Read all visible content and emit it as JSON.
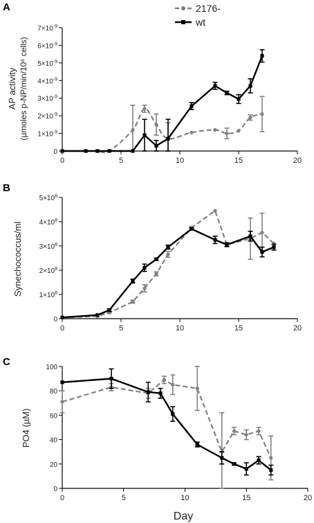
{
  "legend": {
    "entries": [
      {
        "label": "2176-",
        "color": "#808080",
        "dash": true
      },
      {
        "label": "wt",
        "color": "#000000",
        "dash": false
      }
    ]
  },
  "xlabel": "Day",
  "chart_data": [
    {
      "panel": "A",
      "type": "line",
      "xlabel": "",
      "ylabel_line1": "AP activity",
      "ylabel_line2": "(µmoles p-NP/min/10⁶ cells)",
      "xlim": [
        0,
        20
      ],
      "xticks": [
        "0",
        "5",
        "10",
        "15",
        "20"
      ],
      "ylim": [
        0,
        7e-09
      ],
      "yticks": [
        {
          "v": 0,
          "base": "0",
          "exp": ""
        },
        {
          "v": 1e-09,
          "base": "1×10",
          "exp": "-9"
        },
        {
          "v": 2e-09,
          "base": "2×10",
          "exp": "-9"
        },
        {
          "v": 3e-09,
          "base": "3×10",
          "exp": "-9"
        },
        {
          "v": 4e-09,
          "base": "4×10",
          "exp": "-9"
        },
        {
          "v": 5e-09,
          "base": "5×10",
          "exp": "-9"
        },
        {
          "v": 6e-09,
          "base": "6×10",
          "exp": "-9"
        },
        {
          "v": 7e-09,
          "base": "7×10",
          "exp": "-9"
        }
      ],
      "series": [
        {
          "name": "2176-",
          "color": "#808080",
          "dash": true,
          "smooth": true,
          "points": [
            [
              0,
              0,
              0
            ],
            [
              2,
              0,
              0
            ],
            [
              3,
              0,
              0
            ],
            [
              4,
              0,
              0
            ],
            [
              6,
              1.2e-09,
              1.4e-09
            ],
            [
              7,
              2.4e-09,
              2e-10
            ],
            [
              8,
              1.5e-09,
              6e-10
            ],
            [
              9,
              7e-10,
              9e-10
            ],
            [
              11,
              1.05e-09,
              0
            ],
            [
              13,
              1.2e-09,
              0
            ],
            [
              14,
              1e-09,
              3e-10
            ],
            [
              15,
              1.15e-09,
              0
            ],
            [
              16,
              1.9e-09,
              1.5e-10
            ],
            [
              17,
              2.1e-09,
              1e-09
            ]
          ]
        },
        {
          "name": "wt",
          "color": "#000000",
          "dash": false,
          "smooth": false,
          "points": [
            [
              0,
              0,
              0
            ],
            [
              2,
              0,
              0
            ],
            [
              3,
              0,
              0
            ],
            [
              4,
              0,
              0
            ],
            [
              6,
              0,
              0
            ],
            [
              7,
              9e-10,
              9e-10
            ],
            [
              8,
              3e-10,
              3e-10
            ],
            [
              9,
              7e-10,
              1.1e-09
            ],
            [
              11,
              2.55e-09,
              2e-10
            ],
            [
              13,
              3.7e-09,
              2e-10
            ],
            [
              14,
              3.3e-09,
              1e-10
            ],
            [
              15,
              2.95e-09,
              2.5e-10
            ],
            [
              16,
              3.7e-09,
              4e-10
            ],
            [
              17,
              5.4e-09,
              3.5e-10
            ]
          ]
        }
      ]
    },
    {
      "panel": "B",
      "type": "line",
      "xlabel": "",
      "ylabel_line1": "Synechococcus/ml",
      "ylabel_line2": "",
      "xlim": [
        0,
        20
      ],
      "xticks": [
        "0",
        "5",
        "10",
        "15",
        "20"
      ],
      "ylim": [
        0,
        500000000
      ],
      "yticks": [
        {
          "v": 0,
          "base": "0",
          "exp": ""
        },
        {
          "v": 100000000,
          "base": "1×10",
          "exp": "8"
        },
        {
          "v": 200000000,
          "base": "2×10",
          "exp": "8"
        },
        {
          "v": 300000000,
          "base": "3×10",
          "exp": "8"
        },
        {
          "v": 400000000,
          "base": "4×10",
          "exp": "8"
        },
        {
          "v": 500000000,
          "base": "5×10",
          "exp": "8"
        }
      ],
      "series": [
        {
          "name": "2176-",
          "color": "#808080",
          "dash": true,
          "smooth": false,
          "points": [
            [
              0,
              5000000,
              0
            ],
            [
              3,
              10000000,
              0
            ],
            [
              4,
              25000000,
              3000000
            ],
            [
              6,
              70000000,
              6000000
            ],
            [
              7,
              125000000,
              15000000
            ],
            [
              8,
              185000000,
              8000000
            ],
            [
              9,
              265000000,
              12000000
            ],
            [
              11,
              375000000,
              5000000
            ],
            [
              13,
              445000000,
              0
            ],
            [
              14,
              305000000,
              0
            ],
            [
              16,
              330000000,
              85000000
            ],
            [
              17,
              355000000,
              80000000
            ],
            [
              18,
              310000000,
              0
            ]
          ]
        },
        {
          "name": "wt",
          "color": "#000000",
          "dash": false,
          "smooth": false,
          "points": [
            [
              0,
              5000000,
              0
            ],
            [
              3,
              15000000,
              0
            ],
            [
              4,
              35000000,
              5000000
            ],
            [
              6,
              155000000,
              8000000
            ],
            [
              7,
              210000000,
              15000000
            ],
            [
              8,
              245000000,
              5000000
            ],
            [
              9,
              295000000,
              8000000
            ],
            [
              11,
              370000000,
              5000000
            ],
            [
              13,
              325000000,
              15000000
            ],
            [
              14,
              305000000,
              8000000
            ],
            [
              16,
              340000000,
              20000000
            ],
            [
              17,
              275000000,
              20000000
            ],
            [
              18,
              295000000,
              12000000
            ]
          ]
        }
      ]
    },
    {
      "panel": "C",
      "type": "line",
      "xlabel": "Day",
      "ylabel_line1": "PO4 (µM)",
      "ylabel_line2": "",
      "xlim": [
        0,
        20
      ],
      "xticks": [
        "0",
        "5",
        "10",
        "15",
        "20"
      ],
      "ylim": [
        0,
        100
      ],
      "yticks": [
        {
          "v": 0,
          "base": "0",
          "exp": ""
        },
        {
          "v": 20,
          "base": "20",
          "exp": ""
        },
        {
          "v": 40,
          "base": "40",
          "exp": ""
        },
        {
          "v": 60,
          "base": "60",
          "exp": ""
        },
        {
          "v": 80,
          "base": "80",
          "exp": ""
        },
        {
          "v": 100,
          "base": "100",
          "exp": ""
        }
      ],
      "series": [
        {
          "name": "2176-",
          "color": "#808080",
          "dash": true,
          "smooth": false,
          "points": [
            [
              0,
              71,
              9
            ],
            [
              4,
              83,
              3
            ],
            [
              7,
              78,
              4
            ],
            [
              8.3,
              89,
              3
            ],
            [
              9,
              85,
              8
            ],
            [
              11,
              82,
              18
            ],
            [
              13,
              30,
              32
            ],
            [
              14,
              47,
              3
            ],
            [
              15,
              44,
              4
            ],
            [
              16,
              47,
              3
            ],
            [
              17,
              25,
              18
            ]
          ]
        },
        {
          "name": "wt",
          "color": "#000000",
          "dash": false,
          "smooth": false,
          "points": [
            [
              0,
              87,
              0
            ],
            [
              4,
              90,
              8
            ],
            [
              7,
              79,
              8
            ],
            [
              8,
              78,
              4
            ],
            [
              9,
              61,
              6
            ],
            [
              11,
              36,
              2
            ],
            [
              13,
              25,
              5
            ],
            [
              14,
              20,
              1
            ],
            [
              15,
              16,
              5
            ],
            [
              16,
              23,
              3
            ],
            [
              17,
              15,
              4
            ]
          ]
        }
      ]
    }
  ],
  "panel_labels": [
    "A",
    "B",
    "C"
  ]
}
